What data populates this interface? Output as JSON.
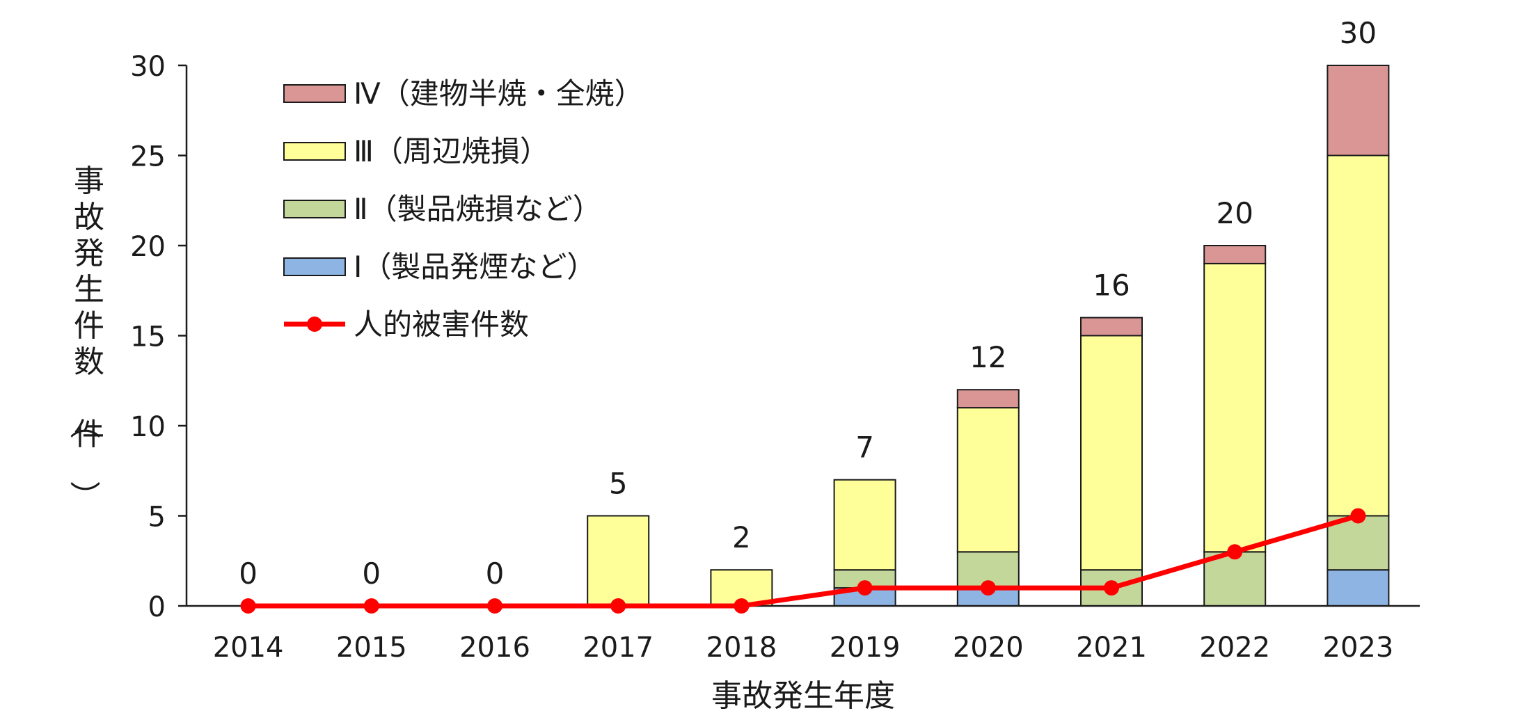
{
  "chart_data": {
    "type": "bar",
    "stacked": true,
    "xlabel": "事故発生年度",
    "ylabel": "事故発生件数（件）",
    "ylim": [
      0,
      30
    ],
    "yticks": [
      0,
      5,
      10,
      15,
      20,
      25,
      30
    ],
    "grid": false,
    "legend_position": "top-left",
    "categories": [
      "2014",
      "2015",
      "2016",
      "2017",
      "2018",
      "2019",
      "2020",
      "2021",
      "2022",
      "2023"
    ],
    "series": [
      {
        "name": "Ⅰ（製品発煙など）",
        "color": "#8EB4E3",
        "values": [
          0,
          0,
          0,
          0,
          0,
          1,
          1,
          0,
          0,
          2
        ]
      },
      {
        "name": "Ⅱ（製品焼損など）",
        "color": "#C4D79B",
        "values": [
          0,
          0,
          0,
          0,
          0,
          1,
          2,
          2,
          3,
          3
        ]
      },
      {
        "name": "Ⅲ（周辺焼損）",
        "color": "#FFFF99",
        "values": [
          0,
          0,
          0,
          5,
          2,
          5,
          8,
          13,
          16,
          20
        ]
      },
      {
        "name": "Ⅳ（建物半焼・全焼）",
        "color": "#D99694",
        "values": [
          0,
          0,
          0,
          0,
          0,
          0,
          1,
          1,
          1,
          5
        ]
      }
    ],
    "totals": [
      "0",
      "0",
      "0",
      "5",
      "2",
      "7",
      "12",
      "16",
      "20",
      "30"
    ],
    "line_series": {
      "name": "人的被害件数",
      "color": "#FF0000",
      "values": [
        0,
        0,
        0,
        0,
        0,
        1,
        1,
        1,
        3,
        5
      ]
    }
  }
}
